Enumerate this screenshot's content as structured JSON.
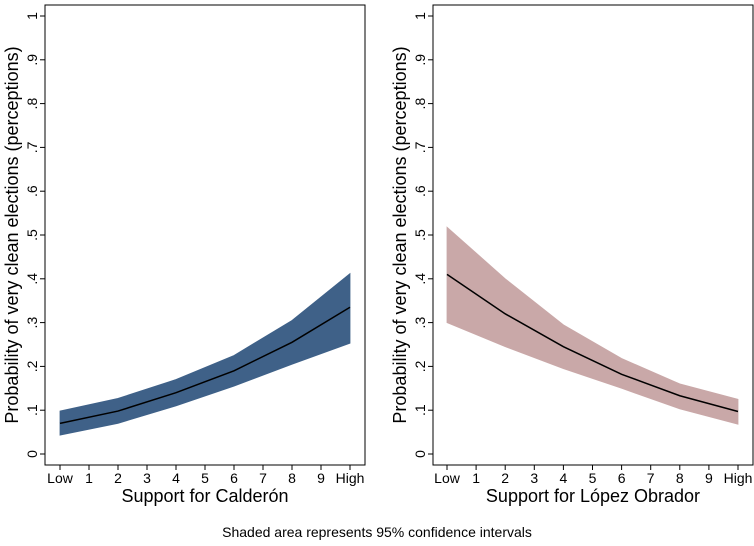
{
  "caption": "Shaded area represents 95% confidence intervals",
  "chart_data": [
    {
      "type": "area",
      "xlabel": "Support for Calderón",
      "ylabel": "Probability of very clean elections (perceptions)",
      "x_ticks": [
        "Low",
        "1",
        "2",
        "3",
        "4",
        "5",
        "6",
        "7",
        "8",
        "9",
        "High"
      ],
      "y_ticks": [
        "0",
        ".1",
        ".2",
        ".3",
        ".4",
        ".5",
        ".6",
        ".7",
        ".8",
        ".9",
        "1"
      ],
      "xlim": [
        0,
        10
      ],
      "ylim": [
        0,
        1
      ],
      "grid": false,
      "band_color": "#3f6188",
      "line_color": "#000000",
      "x": [
        0,
        2,
        4,
        6,
        8,
        10
      ],
      "series": [
        {
          "role": "estimate",
          "values": [
            0.07,
            0.098,
            0.14,
            0.19,
            0.255,
            0.335
          ]
        },
        {
          "role": "lower",
          "values": [
            0.043,
            0.07,
            0.11,
            0.155,
            0.205,
            0.253
          ]
        },
        {
          "role": "upper",
          "values": [
            0.098,
            0.127,
            0.17,
            0.225,
            0.305,
            0.412
          ]
        }
      ]
    },
    {
      "type": "area",
      "xlabel": "Support for López Obrador",
      "ylabel": "Probability of very clean elections (perceptions)",
      "x_ticks": [
        "Low",
        "1",
        "2",
        "3",
        "4",
        "5",
        "6",
        "7",
        "8",
        "9",
        "High"
      ],
      "y_ticks": [
        "0",
        ".1",
        ".2",
        ".3",
        ".4",
        ".5",
        ".6",
        ".7",
        ".8",
        ".9",
        "1"
      ],
      "xlim": [
        0,
        10
      ],
      "ylim": [
        0,
        1
      ],
      "grid": false,
      "band_color": "#c9a8a8",
      "line_color": "#000000",
      "x": [
        0,
        2,
        4,
        6,
        8,
        10
      ],
      "series": [
        {
          "role": "estimate",
          "values": [
            0.41,
            0.32,
            0.245,
            0.182,
            0.133,
            0.097
          ]
        },
        {
          "role": "lower",
          "values": [
            0.3,
            0.245,
            0.195,
            0.15,
            0.103,
            0.068
          ]
        },
        {
          "role": "upper",
          "values": [
            0.518,
            0.4,
            0.295,
            0.218,
            0.16,
            0.125
          ]
        }
      ]
    }
  ]
}
